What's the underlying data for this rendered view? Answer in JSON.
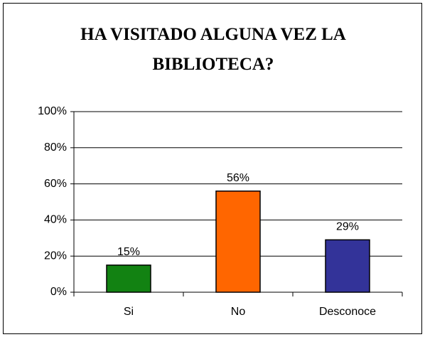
{
  "chart_data": {
    "type": "bar",
    "title": "HA VISITADO ALGUNA VEZ LA BIBLIOTECA?",
    "categories": [
      "Si",
      "No",
      "Desconoce"
    ],
    "values": [
      15,
      56,
      29
    ],
    "value_labels": [
      "15%",
      "56%",
      "29%"
    ],
    "colors": [
      "#128212",
      "#ff6600",
      "#333399"
    ],
    "ylim": [
      0,
      100
    ],
    "yticks": [
      {
        "value": 0,
        "label": "0%"
      },
      {
        "value": 20,
        "label": "20%"
      },
      {
        "value": 40,
        "label": "40%"
      },
      {
        "value": 60,
        "label": "60%"
      },
      {
        "value": 80,
        "label": "80%"
      },
      {
        "value": 100,
        "label": "100%"
      }
    ],
    "grid": true
  }
}
